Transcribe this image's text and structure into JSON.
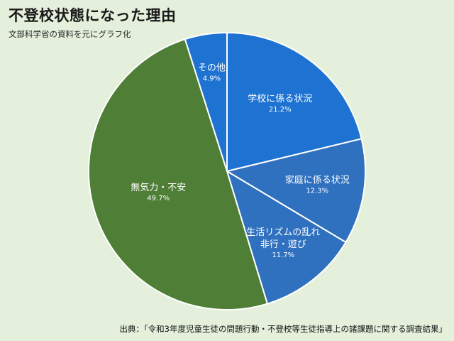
{
  "title": "不登校状態になった理由",
  "subtitle": "文部科学省の資料を元にグラフ化",
  "source": "出典：「令和3年度児童生徒の問題行動・不登校等生徒指導上の諸課題に関する調査結果」",
  "chart_data": {
    "type": "pie",
    "title": "不登校状態になった理由",
    "slices": [
      {
        "label_lines": [
          "学校に係る状況"
        ],
        "value_label": "21.2%",
        "value": 21.2,
        "color": "#1e73d2"
      },
      {
        "label_lines": [
          "家庭に係る状況"
        ],
        "value_label": "12.3%",
        "value": 12.3,
        "color": "#2f70bf"
      },
      {
        "label_lines": [
          "生活リズムの乱れ",
          "非行・遊び"
        ],
        "value_label": "11.7%",
        "value": 11.7,
        "color": "#2f70bf"
      },
      {
        "label_lines": [
          "無気力・不安"
        ],
        "value_label": "49.7%",
        "value": 49.7,
        "color": "#4f7e36"
      },
      {
        "label_lines": [
          "その他"
        ],
        "value_label": "4.9%",
        "value": 4.9,
        "color": "#1e73d2"
      }
    ],
    "start_angle": "12 o'clock",
    "direction": "clockwise",
    "legend": "none"
  }
}
